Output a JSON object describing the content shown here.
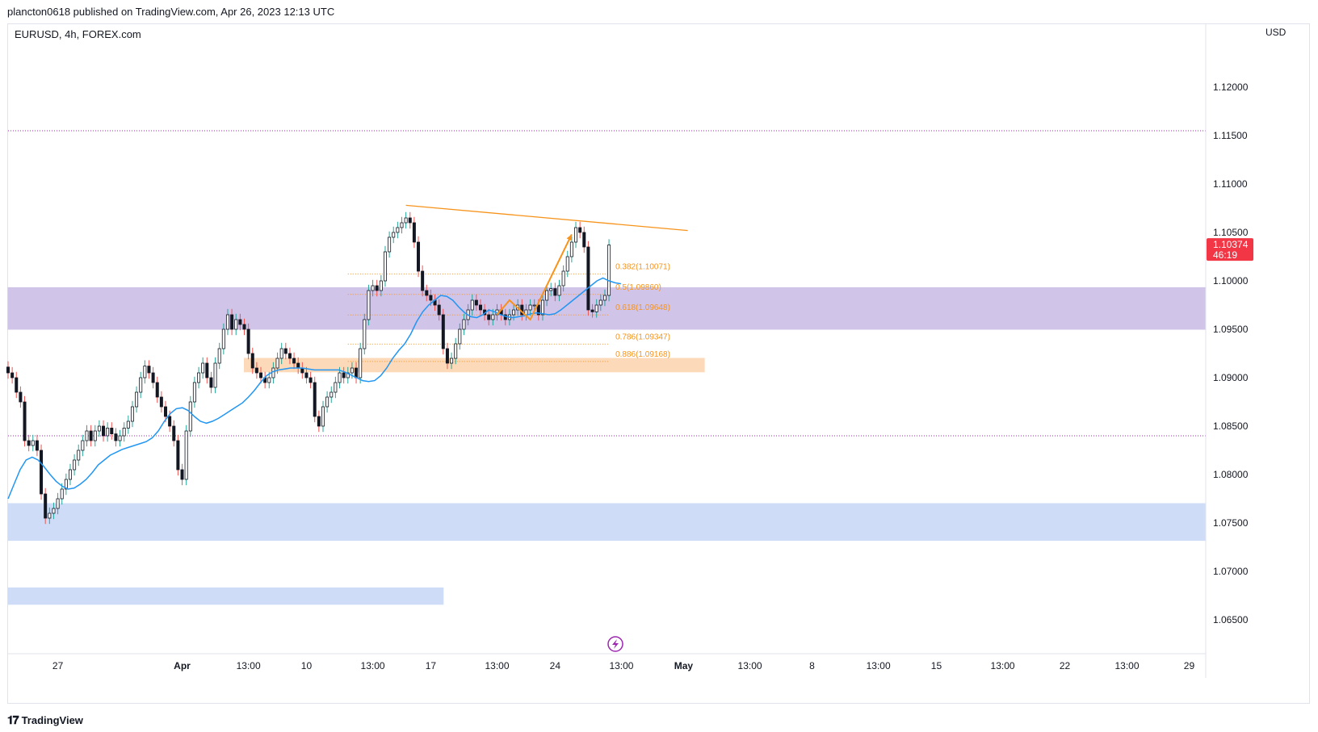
{
  "header": {
    "published_line": "plancton0618 published on TradingView.com, Apr 26, 2023 12:13 UTC"
  },
  "symbol_line": "EURUSD, 4h, FOREX.com",
  "currency": "USD",
  "footer_brand": "TradingView",
  "footer_logo": "tradingview-logo",
  "colors": {
    "bull": "#26a69a",
    "bear": "#ef5350",
    "candle_body": "#131722",
    "ma": "#2196f3",
    "trend": "#f7931a",
    "resistance_zone": "#d1c4e9",
    "support_zone": "#cfdcf7",
    "order_block": "#fcd9b8",
    "dotted_line": "#9c27b0",
    "price_badge": "#f23645"
  },
  "chart_data": {
    "type": "candlestick",
    "symbol": "EURUSD",
    "timeframe": "4h",
    "ylim": [
      1.0615,
      1.1265
    ],
    "y_ticks": [
      "1.12000",
      "1.11500",
      "1.11000",
      "1.10500",
      "1.10000",
      "1.09500",
      "1.09000",
      "1.08500",
      "1.08000",
      "1.07500",
      "1.07000",
      "1.06500"
    ],
    "y_tick_values": [
      1.12,
      1.115,
      1.11,
      1.105,
      1.1,
      1.095,
      1.09,
      1.085,
      1.08,
      1.075,
      1.07,
      1.065
    ],
    "x_ticks": [
      {
        "label": "27",
        "bar": 12,
        "bold": false
      },
      {
        "label": "Apr",
        "bar": 42,
        "bold": true
      },
      {
        "label": "13:00",
        "bar": 58,
        "bold": false
      },
      {
        "label": "10",
        "bar": 72,
        "bold": false
      },
      {
        "label": "13:00",
        "bar": 88,
        "bold": false
      },
      {
        "label": "17",
        "bar": 102,
        "bold": false
      },
      {
        "label": "13:00",
        "bar": 118,
        "bold": false
      },
      {
        "label": "24",
        "bar": 132,
        "bold": false
      },
      {
        "label": "13:00",
        "bar": 148,
        "bold": false
      },
      {
        "label": "May",
        "bar": 163,
        "bold": true
      },
      {
        "label": "13:00",
        "bar": 179,
        "bold": false
      },
      {
        "label": "8",
        "bar": 194,
        "bold": false
      },
      {
        "label": "13:00",
        "bar": 210,
        "bold": false
      },
      {
        "label": "15",
        "bar": 224,
        "bold": false
      },
      {
        "label": "13:00",
        "bar": 240,
        "bold": false
      },
      {
        "label": "22",
        "bar": 255,
        "bold": false
      },
      {
        "label": "13:00",
        "bar": 270,
        "bold": false
      },
      {
        "label": "29",
        "bar": 285,
        "bold": false
      }
    ],
    "x_bar_range": [
      0,
      289
    ],
    "closes": [
      1.0905,
      1.09,
      1.0885,
      1.0875,
      1.0835,
      1.083,
      1.0835,
      1.0825,
      1.078,
      1.0755,
      1.076,
      1.0765,
      1.0775,
      1.0785,
      1.0795,
      1.0805,
      1.0815,
      1.0825,
      1.0835,
      1.0845,
      1.0835,
      1.0845,
      1.085,
      1.084,
      1.0848,
      1.0842,
      1.0835,
      1.084,
      1.0848,
      1.0855,
      1.087,
      1.0885,
      1.09,
      1.0912,
      1.0905,
      1.0895,
      1.088,
      1.087,
      1.086,
      1.085,
      1.0835,
      1.0805,
      1.0795,
      1.0845,
      1.0875,
      1.0895,
      1.0905,
      1.0915,
      1.09,
      1.089,
      1.0915,
      1.093,
      1.095,
      1.0965,
      1.095,
      1.096,
      1.0955,
      1.095,
      1.0925,
      1.091,
      1.0905,
      1.09,
      1.0895,
      1.09,
      1.091,
      1.092,
      1.093,
      1.0925,
      1.092,
      1.0915,
      1.091,
      1.0905,
      1.09,
      1.0895,
      1.086,
      1.085,
      1.087,
      1.088,
      1.0885,
      1.0895,
      1.0905,
      1.09,
      1.0905,
      1.091,
      1.09,
      1.093,
      1.096,
      1.099,
      1.0995,
      1.099,
      1.1,
      1.103,
      1.1045,
      1.105,
      1.1055,
      1.106,
      1.1065,
      1.106,
      1.104,
      1.101,
      1.099,
      1.0985,
      1.098,
      1.0975,
      1.0965,
      1.093,
      1.0915,
      1.092,
      1.0935,
      1.095,
      1.096,
      1.097,
      1.098,
      1.0975,
      1.097,
      1.0965,
      1.096,
      1.0965,
      1.097,
      1.0965,
      1.096,
      1.0965,
      1.097,
      1.0975,
      1.0965,
      1.097,
      1.0975,
      1.0975,
      1.0965,
      1.098,
      1.099,
      1.0992,
      1.0985,
      1.0995,
      1.101,
      1.1025,
      1.104,
      1.1055,
      1.105,
      1.1035,
      1.097,
      1.0968,
      1.0975,
      1.098,
      1.0985,
      1.1037
    ],
    "ma": [
      1.0775,
      1.079,
      1.0805,
      1.0815,
      1.0818,
      1.0815,
      1.0808,
      1.08,
      1.0793,
      1.0788,
      1.0785,
      1.0786,
      1.079,
      1.0795,
      1.0802,
      1.081,
      1.0815,
      1.082,
      1.0823,
      1.0826,
      1.0828,
      1.083,
      1.0832,
      1.0834,
      1.0838,
      1.0845,
      1.0855,
      1.0863,
      1.0868,
      1.0869,
      1.0866,
      1.086,
      1.0855,
      1.0853,
      1.0855,
      1.0858,
      1.0862,
      1.0866,
      1.087,
      1.0874,
      1.088,
      1.0887,
      1.0895,
      1.0902,
      1.0906,
      1.0908,
      1.0909,
      1.091,
      1.091,
      1.091,
      1.0909,
      1.0908,
      1.0908,
      1.0908,
      1.0908,
      1.0908,
      1.0906,
      1.0903,
      1.09,
      1.0897,
      1.0896,
      1.0897,
      1.0902,
      1.091,
      1.092,
      1.0928,
      1.0935,
      1.0945,
      1.0958,
      1.0968,
      1.0975,
      1.098,
      1.0985,
      1.0984,
      1.098,
      1.0973,
      1.0967,
      1.0963,
      1.0962,
      1.0965,
      1.097,
      1.0968,
      1.0965,
      1.0963,
      1.0962,
      1.0963,
      1.0964,
      1.0966,
      1.0967,
      1.0966,
      1.0965,
      1.0966,
      1.097,
      1.0975,
      1.098,
      1.0985,
      1.099,
      1.0995,
      1.1,
      1.1003,
      1.1,
      1.0998,
      1.0997
    ],
    "zones": [
      {
        "name": "resistance-zone",
        "y_top": 1.0993,
        "y_bottom": 1.095,
        "bar_start": 0,
        "bar_end": 289,
        "color": "#d1c4e9"
      },
      {
        "name": "support-zone",
        "y_top": 1.077,
        "y_bottom": 1.0732,
        "bar_start": 0,
        "bar_end": 289,
        "color": "#cfdcf7"
      },
      {
        "name": "lower-support-zone",
        "y_top": 1.0683,
        "y_bottom": 1.0666,
        "bar_start": 0,
        "bar_end": 105,
        "color": "#cfdcf7"
      },
      {
        "name": "order-block-zone",
        "y_top": 1.092,
        "y_bottom": 1.0906,
        "bar_start": 57,
        "bar_end": 168,
        "color": "#fcd9b8"
      }
    ],
    "dotted_levels": [
      1.1155,
      1.084
    ],
    "trend_line": {
      "bar_start": 96,
      "y_start": 1.1078,
      "bar_end": 164,
      "y_end": 1.1052
    },
    "fib_levels": [
      {
        "label": "0.382(1.10071)",
        "value": 1.10071
      },
      {
        "label": "0.5(1.09860)",
        "value": 1.0986
      },
      {
        "label": "0.618(1.09648)",
        "value": 1.09648
      },
      {
        "label": "0.786(1.09347)",
        "value": 1.09347
      },
      {
        "label": "0.886(1.09168)",
        "value": 1.09168
      }
    ],
    "fib_bar_range": [
      82,
      145
    ],
    "projection": [
      {
        "bar": 118,
        "y": 1.0965
      },
      {
        "bar": 121,
        "y": 1.098
      },
      {
        "bar": 126,
        "y": 1.096
      },
      {
        "bar": 136,
        "y": 1.1048
      }
    ],
    "last_price": "1.10374",
    "last_price_value": 1.10374,
    "countdown": "46:19"
  }
}
